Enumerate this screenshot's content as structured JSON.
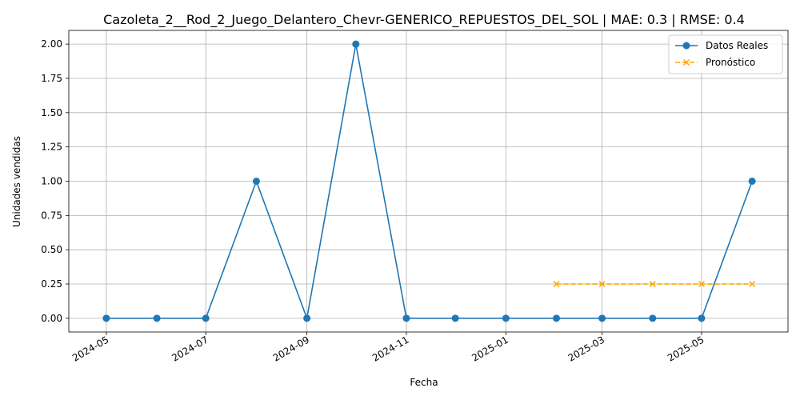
{
  "chart_data": {
    "type": "line",
    "title": "Cazoleta_2__Rod_2_Juego_Delantero_Chevr-GENERICO_REPUESTOS_DEL_SOL | MAE: 0.3 | RMSE: 0.4",
    "xlabel": "Fecha",
    "ylabel": "Unidades vendidas",
    "xlim": [
      "2024-04-08",
      "2025-06-23"
    ],
    "ylim": [
      -0.1,
      2.1
    ],
    "x_ticks": [
      "2024-05",
      "2024-07",
      "2024-09",
      "2024-11",
      "2025-01",
      "2025-03",
      "2025-05"
    ],
    "x_tick_dates": [
      "2024-05-01",
      "2024-07-01",
      "2024-09-01",
      "2024-11-01",
      "2025-01-01",
      "2025-03-01",
      "2025-05-01"
    ],
    "y_ticks": [
      "0.00",
      "0.25",
      "0.50",
      "0.75",
      "1.00",
      "1.25",
      "1.50",
      "1.75",
      "2.00"
    ],
    "grid": true,
    "legend_position": "top-right",
    "series": [
      {
        "name": "Datos Reales",
        "color": "#1f77b4",
        "style": "solid",
        "marker": "circle",
        "x": [
          "2024-05-01",
          "2024-06-01",
          "2024-07-01",
          "2024-08-01",
          "2024-09-01",
          "2024-10-01",
          "2024-11-01",
          "2024-12-01",
          "2025-01-01",
          "2025-02-01",
          "2025-03-01",
          "2025-04-01",
          "2025-05-01",
          "2025-06-01"
        ],
        "values": [
          0,
          0,
          0,
          1,
          0,
          2,
          0,
          0,
          0,
          0,
          0,
          0,
          0,
          1
        ]
      },
      {
        "name": "Pronóstico",
        "color": "#ffa500",
        "style": "dashed",
        "marker": "x",
        "x": [
          "2025-02-01",
          "2025-03-01",
          "2025-04-01",
          "2025-05-01",
          "2025-06-01"
        ],
        "values": [
          0.25,
          0.25,
          0.25,
          0.25,
          0.25
        ]
      }
    ]
  }
}
